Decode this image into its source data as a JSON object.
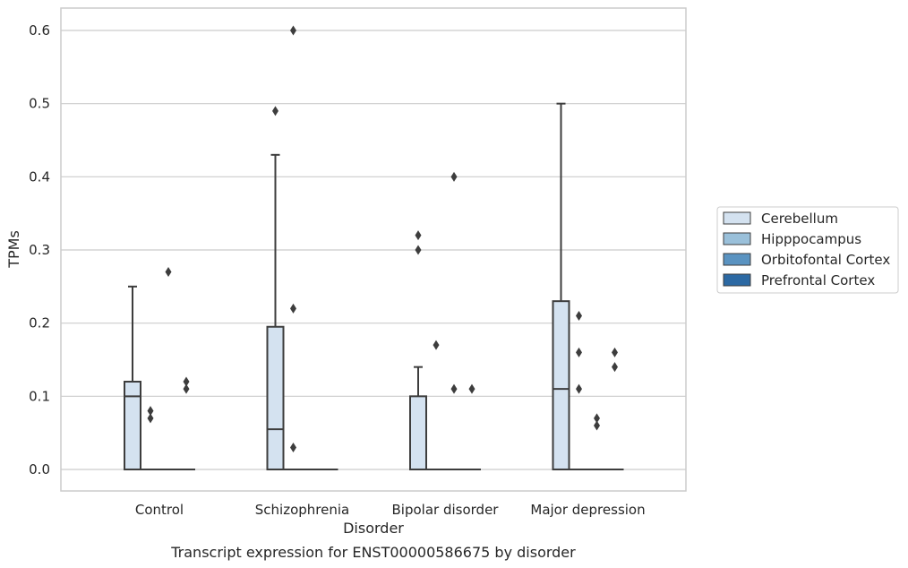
{
  "caption": "Transcript expression for ENST00000586675 by disorder",
  "chart_data": {
    "type": "box",
    "xlabel": "Disorder",
    "ylabel": "TPMs",
    "ylim": [
      -0.03,
      0.63
    ],
    "yticks": [
      "0.0",
      "0.1",
      "0.2",
      "0.3",
      "0.4",
      "0.5",
      "0.6"
    ],
    "grid": "horizontal",
    "legend_position": "right",
    "categories": [
      "Control",
      "Schizophrenia",
      "Bipolar disorder",
      "Major depression"
    ],
    "series": [
      {
        "name": "Cerebellum",
        "color": "#d4e2f0",
        "boxes": [
          {
            "min": 0,
            "q1": 0,
            "median": 0.1,
            "q3": 0.12,
            "max": 0.25,
            "outliers": []
          },
          {
            "min": 0,
            "q1": 0,
            "median": 0.055,
            "q3": 0.195,
            "max": 0.43,
            "outliers": [
              0.49
            ]
          },
          {
            "min": 0,
            "q1": 0,
            "median": 0,
            "q3": 0.1,
            "max": 0.14,
            "outliers": [
              0.32,
              0.3
            ]
          },
          {
            "min": 0,
            "q1": 0,
            "median": 0.11,
            "q3": 0.23,
            "max": 0.5,
            "outliers": []
          }
        ]
      },
      {
        "name": "Hipppocampus",
        "color": "#9ac0da",
        "boxes": [
          {
            "min": 0,
            "q1": 0,
            "median": 0,
            "q3": 0,
            "max": 0,
            "outliers": [
              0.08,
              0.07
            ]
          },
          {
            "min": 0,
            "q1": 0,
            "median": 0,
            "q3": 0,
            "max": 0,
            "outliers": [
              0.6,
              0.22,
              0.03
            ]
          },
          {
            "min": 0,
            "q1": 0,
            "median": 0,
            "q3": 0,
            "max": 0,
            "outliers": [
              0.17
            ]
          },
          {
            "min": 0,
            "q1": 0,
            "median": 0,
            "q3": 0,
            "max": 0,
            "outliers": [
              0.21,
              0.16,
              0.11
            ]
          }
        ]
      },
      {
        "name": "Orbitofontal Cortex",
        "color": "#5a93c1",
        "boxes": [
          {
            "min": 0,
            "q1": 0,
            "median": 0,
            "q3": 0,
            "max": 0,
            "outliers": [
              0.27
            ]
          },
          {
            "min": 0,
            "q1": 0,
            "median": 0,
            "q3": 0,
            "max": 0,
            "outliers": []
          },
          {
            "min": 0,
            "q1": 0,
            "median": 0,
            "q3": 0,
            "max": 0,
            "outliers": [
              0.4,
              0.11
            ]
          },
          {
            "min": 0,
            "q1": 0,
            "median": 0,
            "q3": 0,
            "max": 0,
            "outliers": [
              0.07,
              0.06
            ]
          }
        ]
      },
      {
        "name": "Prefrontal Cortex",
        "color": "#2c69a3",
        "boxes": [
          {
            "min": 0,
            "q1": 0,
            "median": 0,
            "q3": 0,
            "max": 0,
            "outliers": [
              0.12,
              0.11
            ]
          },
          {
            "min": 0,
            "q1": 0,
            "median": 0,
            "q3": 0,
            "max": 0,
            "outliers": []
          },
          {
            "min": 0,
            "q1": 0,
            "median": 0,
            "q3": 0,
            "max": 0,
            "outliers": [
              0.11
            ]
          },
          {
            "min": 0,
            "q1": 0,
            "median": 0,
            "q3": 0,
            "max": 0,
            "outliers": [
              0.16,
              0.14
            ]
          }
        ]
      }
    ]
  }
}
